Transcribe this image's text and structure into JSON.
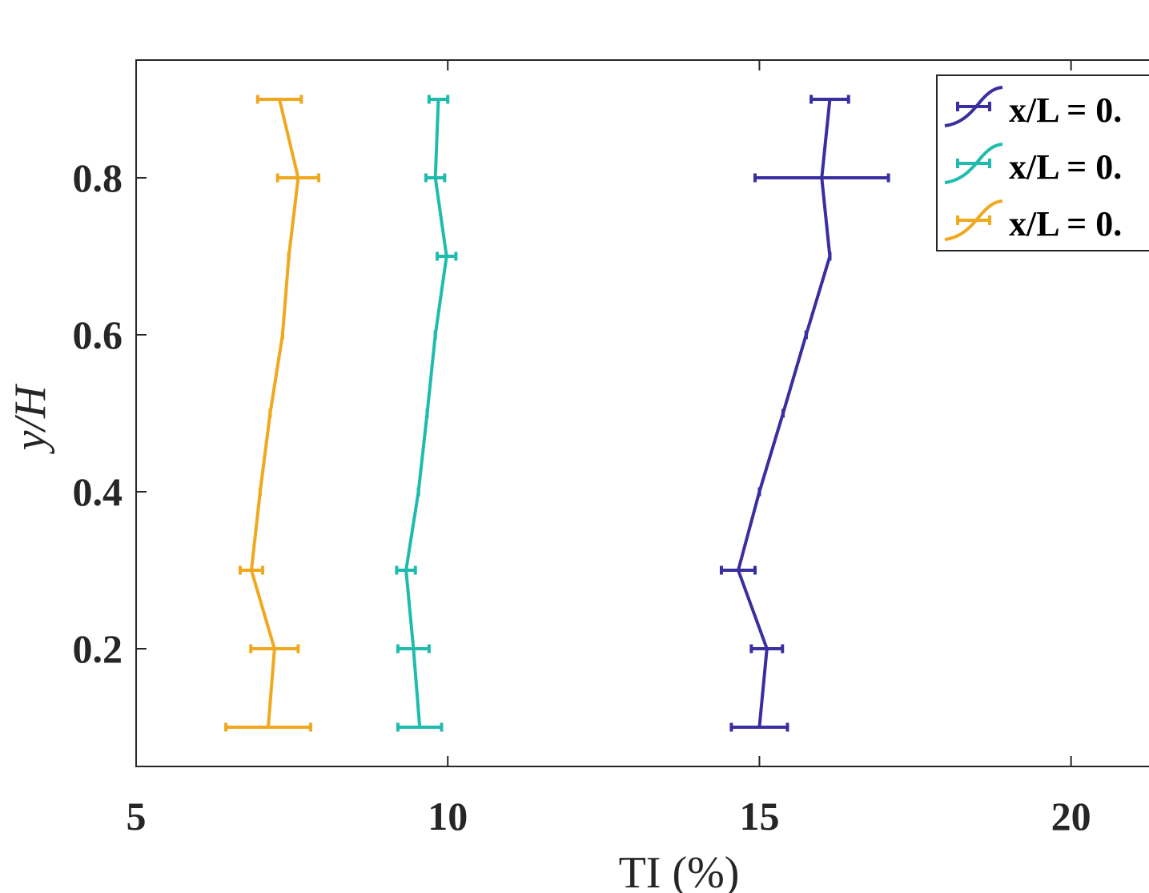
{
  "chart_data": {
    "type": "line",
    "title": "",
    "xlabel": "TI (%)",
    "ylabel": "y/H",
    "xlim": [
      5,
      21.7
    ],
    "ylim": [
      0.05,
      0.95
    ],
    "xticks": [
      5,
      10,
      15,
      20
    ],
    "yticks": [
      0.2,
      0.4,
      0.6,
      0.8
    ],
    "xtick_labels": [
      "5",
      "10",
      "15",
      "20"
    ],
    "ytick_labels": [
      "0.2",
      "0.4",
      "0.6",
      "0.8"
    ],
    "grid": false,
    "legend_position": "top-right",
    "series": [
      {
        "name": "x/L = 0.",
        "color": "#3a2fa0",
        "y": [
          0.1,
          0.2,
          0.3,
          0.4,
          0.5,
          0.6,
          0.7,
          0.8,
          0.9
        ],
        "x": [
          15.0,
          15.12,
          14.66,
          15.0,
          15.38,
          15.75,
          16.13,
          16.0,
          16.13
        ],
        "err": [
          0.45,
          0.25,
          0.27,
          0.0,
          0.0,
          0.0,
          0.0,
          1.07,
          0.3
        ]
      },
      {
        "name": "x/L = 0.",
        "color": "#1fbcae",
        "y": [
          0.1,
          0.2,
          0.3,
          0.4,
          0.5,
          0.6,
          0.7,
          0.8,
          0.9
        ],
        "x": [
          9.55,
          9.45,
          9.33,
          9.53,
          9.67,
          9.8,
          9.98,
          9.8,
          9.85
        ],
        "err": [
          0.35,
          0.25,
          0.15,
          0.0,
          0.0,
          0.0,
          0.15,
          0.15,
          0.15
        ]
      },
      {
        "name": "x/L = 0.",
        "color": "#f0a81e",
        "y": [
          0.1,
          0.2,
          0.3,
          0.4,
          0.5,
          0.6,
          0.7,
          0.8,
          0.9
        ],
        "x": [
          7.12,
          7.22,
          6.85,
          6.99,
          7.15,
          7.35,
          7.45,
          7.6,
          7.3
        ],
        "err": [
          0.68,
          0.38,
          0.18,
          0.0,
          0.0,
          0.0,
          0.0,
          0.33,
          0.35
        ]
      }
    ]
  }
}
